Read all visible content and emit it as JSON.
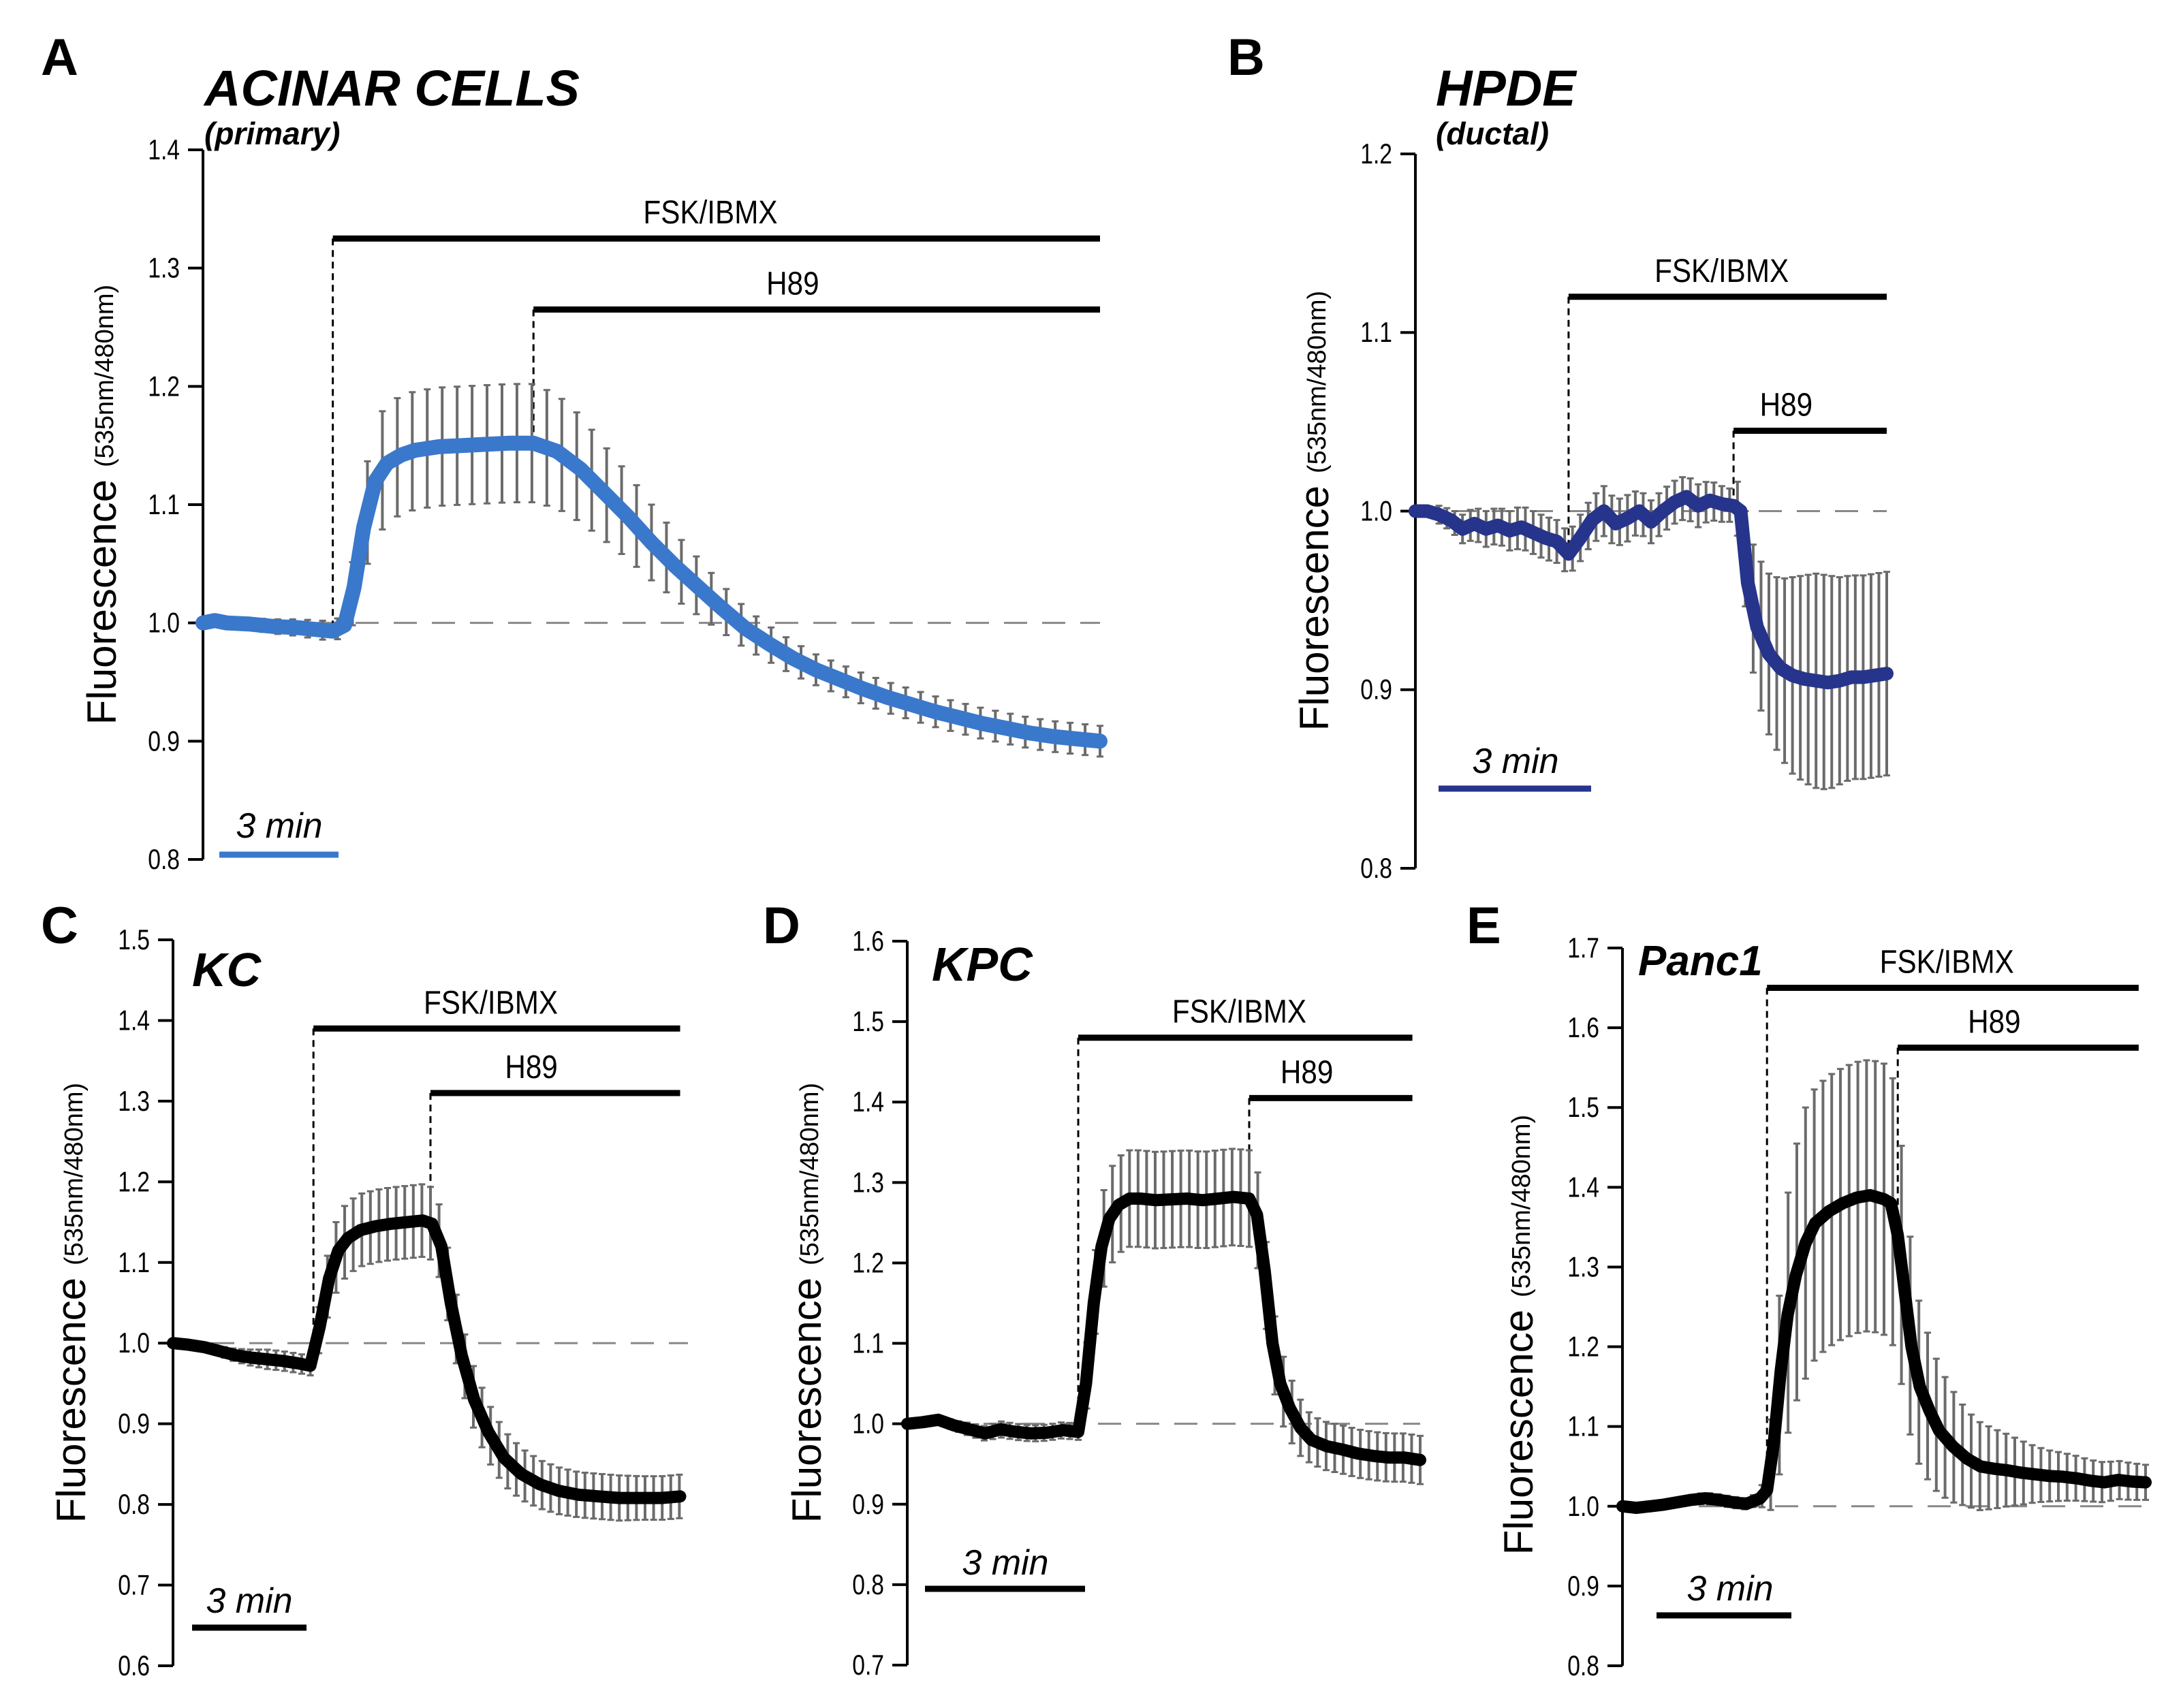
{
  "chart_data": [
    {
      "type": "line",
      "panel": "A",
      "title": "ACINAR CELLS",
      "subtitle": "(primary)",
      "ylabel": "Fluorescence",
      "ylabel_units": "(535nm/480nm)",
      "ylim": [
        0.8,
        1.4
      ],
      "yticks": [
        "0.8",
        "0.9",
        "1.0",
        "1.1",
        "1.2",
        "1.3",
        "1.4"
      ],
      "xlim": [
        0,
        38
      ],
      "color": "#3a78cc",
      "baseline": 1.0,
      "scale_bar": {
        "label": "3 min",
        "minutes": 3
      },
      "treatments": [
        {
          "label": "FSK/IBMX",
          "start": 5.5,
          "end": 38,
          "level": 1.325
        },
        {
          "label": "H89",
          "start": 14,
          "end": 38,
          "level": 1.265
        }
      ],
      "series": [
        {
          "name": "mean",
          "x": [
            0,
            0.5,
            1,
            2,
            3,
            4,
            5,
            5.5,
            6,
            6.4,
            6.8,
            7.3,
            7.8,
            8.4,
            9,
            10,
            11,
            12,
            13,
            14,
            15,
            16,
            17,
            18,
            19,
            20,
            21,
            22,
            23,
            24,
            25,
            26,
            27,
            28,
            29,
            30,
            31,
            32,
            33,
            34,
            35,
            36,
            37,
            38
          ],
          "y": [
            1.0,
            1.002,
            1.0,
            0.999,
            0.997,
            0.996,
            0.994,
            0.993,
            0.998,
            1.03,
            1.08,
            1.12,
            1.135,
            1.142,
            1.146,
            1.149,
            1.15,
            1.151,
            1.152,
            1.152,
            1.145,
            1.13,
            1.11,
            1.09,
            1.068,
            1.048,
            1.03,
            1.012,
            0.995,
            0.982,
            0.97,
            0.96,
            0.952,
            0.944,
            0.937,
            0.931,
            0.925,
            0.92,
            0.915,
            0.911,
            0.907,
            0.904,
            0.902,
            0.9
          ],
          "err": [
            0,
            0,
            0,
            0.005,
            0.006,
            0.007,
            0.008,
            0.008,
            0.01,
            0.03,
            0.04,
            0.05,
            0.05,
            0.05,
            0.05,
            0.05,
            0.05,
            0.05,
            0.05,
            0.05,
            0.048,
            0.045,
            0.04,
            0.036,
            0.032,
            0.028,
            0.024,
            0.02,
            0.017,
            0.015,
            0.014,
            0.013,
            0.013,
            0.013,
            0.013,
            0.013,
            0.013,
            0.013,
            0.013,
            0.013,
            0.013,
            0.013,
            0.013,
            0.013
          ]
        }
      ]
    },
    {
      "type": "line",
      "panel": "B",
      "title": "HPDE",
      "subtitle": "(ductal)",
      "ylabel": "Fluorescence",
      "ylabel_units": "(535nm/480nm)",
      "ylim": [
        0.8,
        1.2
      ],
      "yticks": [
        "0.8",
        "0.9",
        "1.0",
        "1.1",
        "1.2"
      ],
      "xlim": [
        0,
        20
      ],
      "color": "#27348b",
      "baseline": 1.0,
      "scale_bar": {
        "label": "3 min",
        "minutes": 3
      },
      "treatments": [
        {
          "label": "FSK/IBMX",
          "start": 6.5,
          "end": 20,
          "level": 1.12
        },
        {
          "label": "H89",
          "start": 13.5,
          "end": 20,
          "level": 1.045
        }
      ],
      "series": [
        {
          "name": "mean",
          "x": [
            0,
            0.5,
            1,
            1.5,
            2,
            2.5,
            3,
            3.5,
            4,
            4.5,
            5,
            5.5,
            6,
            6.5,
            7,
            7.5,
            8,
            8.5,
            9,
            9.5,
            10,
            10.5,
            11,
            11.5,
            12,
            12.5,
            13,
            13.5,
            13.8,
            14.1,
            14.5,
            15,
            15.5,
            16,
            16.5,
            17,
            17.5,
            18,
            18.5,
            19,
            19.5,
            20
          ],
          "y": [
            1.0,
            1.0,
            0.998,
            0.995,
            0.99,
            0.993,
            0.99,
            0.992,
            0.989,
            0.991,
            0.988,
            0.985,
            0.983,
            0.976,
            0.985,
            0.995,
            1.0,
            0.993,
            0.996,
            1.0,
            0.994,
            1.0,
            1.005,
            1.008,
            1.003,
            1.006,
            1.004,
            1.003,
            1.0,
            0.96,
            0.935,
            0.92,
            0.912,
            0.908,
            0.906,
            0.905,
            0.904,
            0.905,
            0.907,
            0.907,
            0.908,
            0.909
          ],
          "err": [
            0,
            0.003,
            0.005,
            0.006,
            0.008,
            0.009,
            0.01,
            0.01,
            0.011,
            0.012,
            0.012,
            0.012,
            0.012,
            0.012,
            0.013,
            0.013,
            0.014,
            0.013,
            0.013,
            0.012,
            0.012,
            0.012,
            0.012,
            0.012,
            0.012,
            0.011,
            0.01,
            0.009,
            0.02,
            0.03,
            0.04,
            0.045,
            0.05,
            0.055,
            0.058,
            0.06,
            0.06,
            0.058,
            0.057,
            0.057,
            0.057,
            0.057
          ]
        }
      ]
    },
    {
      "type": "line",
      "panel": "C",
      "title": "KC",
      "subtitle": "",
      "ylabel": "Fluorescence",
      "ylabel_units": "(535nm/480nm)",
      "ylim": [
        0.6,
        1.5
      ],
      "yticks": [
        "0.6",
        "0.7",
        "0.8",
        "0.9",
        "1.0",
        "1.1",
        "1.2",
        "1.3",
        "1.4",
        "1.5"
      ],
      "xlim": [
        0,
        33
      ],
      "color": "#000000",
      "baseline": 1.0,
      "scale_bar": {
        "label": "3 min",
        "minutes": 3
      },
      "treatments": [
        {
          "label": "FSK/IBMX",
          "start": 9,
          "end": 32.5,
          "level": 1.39
        },
        {
          "label": "H89",
          "start": 16.5,
          "end": 32.5,
          "level": 1.31
        }
      ],
      "series": [
        {
          "name": "mean",
          "x": [
            0,
            1,
            2,
            3,
            4,
            5,
            6,
            7,
            8,
            8.8,
            9.4,
            10,
            10.6,
            11.2,
            12,
            13,
            14,
            15,
            16,
            16.6,
            17.2,
            17.8,
            18.5,
            19.3,
            20.2,
            21.2,
            22.3,
            23.5,
            24.7,
            26,
            27.3,
            28.6,
            30,
            31.3,
            32.5
          ],
          "y": [
            1.0,
            0.998,
            0.995,
            0.99,
            0.985,
            0.982,
            0.98,
            0.978,
            0.975,
            0.972,
            1.02,
            1.08,
            1.115,
            1.13,
            1.14,
            1.145,
            1.148,
            1.15,
            1.152,
            1.148,
            1.12,
            1.05,
            0.985,
            0.93,
            0.89,
            0.858,
            0.838,
            0.825,
            0.817,
            0.812,
            0.81,
            0.808,
            0.808,
            0.808,
            0.81
          ],
          "err": [
            0,
            0.003,
            0.005,
            0.006,
            0.008,
            0.01,
            0.012,
            0.012,
            0.012,
            0.012,
            0.03,
            0.04,
            0.045,
            0.045,
            0.045,
            0.045,
            0.045,
            0.045,
            0.045,
            0.045,
            0.045,
            0.045,
            0.04,
            0.038,
            0.036,
            0.034,
            0.032,
            0.03,
            0.029,
            0.028,
            0.028,
            0.028,
            0.027,
            0.027,
            0.027
          ]
        }
      ]
    },
    {
      "type": "line",
      "panel": "D",
      "title": "KPC",
      "subtitle": "",
      "ylabel": "Fluorescence",
      "ylabel_units": "(535nm/480nm)",
      "ylim": [
        0.7,
        1.6
      ],
      "yticks": [
        "0.7",
        "0.8",
        "0.9",
        "1.0",
        "1.1",
        "1.2",
        "1.3",
        "1.4",
        "1.5",
        "1.6"
      ],
      "xlim": [
        0,
        33
      ],
      "color": "#000000",
      "baseline": 1.0,
      "scale_bar": {
        "label": "3 min",
        "minutes": 3
      },
      "treatments": [
        {
          "label": "FSK/IBMX",
          "start": 11,
          "end": 32.5,
          "level": 1.48
        },
        {
          "label": "H89",
          "start": 22,
          "end": 32.5,
          "level": 1.405
        }
      ],
      "series": [
        {
          "name": "mean",
          "x": [
            0,
            1,
            2,
            3,
            4,
            5,
            6,
            7,
            8,
            9,
            10,
            11,
            11.5,
            12,
            12.5,
            13,
            13.6,
            14.3,
            15,
            16,
            17,
            18,
            19,
            20,
            21,
            22,
            22.5,
            23,
            23.5,
            24,
            24.6,
            25.3,
            26,
            27,
            28,
            29,
            30,
            31,
            32,
            33
          ],
          "y": [
            1.0,
            1.002,
            1.005,
            0.998,
            0.993,
            0.988,
            0.993,
            0.99,
            0.988,
            0.989,
            0.992,
            0.99,
            1.05,
            1.15,
            1.22,
            1.255,
            1.272,
            1.28,
            1.28,
            1.278,
            1.279,
            1.28,
            1.278,
            1.28,
            1.282,
            1.28,
            1.26,
            1.19,
            1.1,
            1.05,
            1.02,
            0.995,
            0.98,
            0.972,
            0.968,
            0.963,
            0.96,
            0.958,
            0.958,
            0.955
          ],
          "err": [
            0,
            0.003,
            0.005,
            0.006,
            0.008,
            0.009,
            0.01,
            0.01,
            0.01,
            0.01,
            0.01,
            0.01,
            0.04,
            0.05,
            0.06,
            0.06,
            0.06,
            0.06,
            0.06,
            0.06,
            0.06,
            0.06,
            0.06,
            0.06,
            0.06,
            0.06,
            0.06,
            0.055,
            0.05,
            0.045,
            0.04,
            0.035,
            0.03,
            0.03,
            0.03,
            0.03,
            0.03,
            0.03,
            0.03,
            0.03
          ]
        }
      ]
    },
    {
      "type": "line",
      "panel": "E",
      "title": "Panc1",
      "subtitle": "",
      "ylabel": "Fluorescence",
      "ylabel_units": "(535nm/480nm)",
      "ylim": [
        0.8,
        1.7
      ],
      "yticks": [
        "0.8",
        "0.9",
        "1.0",
        "1.1",
        "1.2",
        "1.3",
        "1.4",
        "1.5",
        "1.6",
        "1.7"
      ],
      "xlim": [
        0,
        38
      ],
      "color": "#000000",
      "baseline": 1.0,
      "scale_bar": {
        "label": "3 min",
        "minutes": 3
      },
      "treatments": [
        {
          "label": "FSK/IBMX",
          "start": 10.5,
          "end": 37.5,
          "level": 1.65
        },
        {
          "label": "H89",
          "start": 20,
          "end": 37.5,
          "level": 1.575
        }
      ],
      "series": [
        {
          "name": "mean",
          "x": [
            0,
            1,
            2,
            3,
            4,
            5,
            6,
            7,
            8,
            9,
            10,
            10.5,
            11,
            11.5,
            12,
            12.6,
            13.3,
            14,
            15,
            16,
            17,
            18,
            19,
            19.5,
            20,
            20.5,
            21,
            21.6,
            22.3,
            23,
            24,
            25,
            26,
            27,
            28,
            29,
            30,
            31,
            32,
            33,
            34,
            35,
            36,
            37,
            38
          ],
          "y": [
            1.0,
            0.998,
            1.0,
            1.002,
            1.005,
            1.008,
            1.01,
            1.008,
            1.005,
            1.003,
            1.01,
            1.02,
            1.08,
            1.17,
            1.24,
            1.29,
            1.33,
            1.355,
            1.37,
            1.38,
            1.387,
            1.39,
            1.385,
            1.38,
            1.34,
            1.27,
            1.2,
            1.15,
            1.12,
            1.095,
            1.075,
            1.06,
            1.05,
            1.047,
            1.045,
            1.042,
            1.04,
            1.038,
            1.037,
            1.035,
            1.032,
            1.03,
            1.033,
            1.031,
            1.03
          ],
          "err": [
            0,
            0.002,
            0.003,
            0.004,
            0.005,
            0.006,
            0.007,
            0.007,
            0.007,
            0.007,
            0.008,
            0.03,
            0.08,
            0.12,
            0.15,
            0.16,
            0.17,
            0.17,
            0.17,
            0.17,
            0.17,
            0.17,
            0.17,
            0.17,
            0.16,
            0.14,
            0.12,
            0.1,
            0.09,
            0.08,
            0.07,
            0.06,
            0.055,
            0.05,
            0.045,
            0.04,
            0.035,
            0.032,
            0.03,
            0.028,
            0.026,
            0.025,
            0.024,
            0.023,
            0.022
          ]
        }
      ]
    }
  ]
}
